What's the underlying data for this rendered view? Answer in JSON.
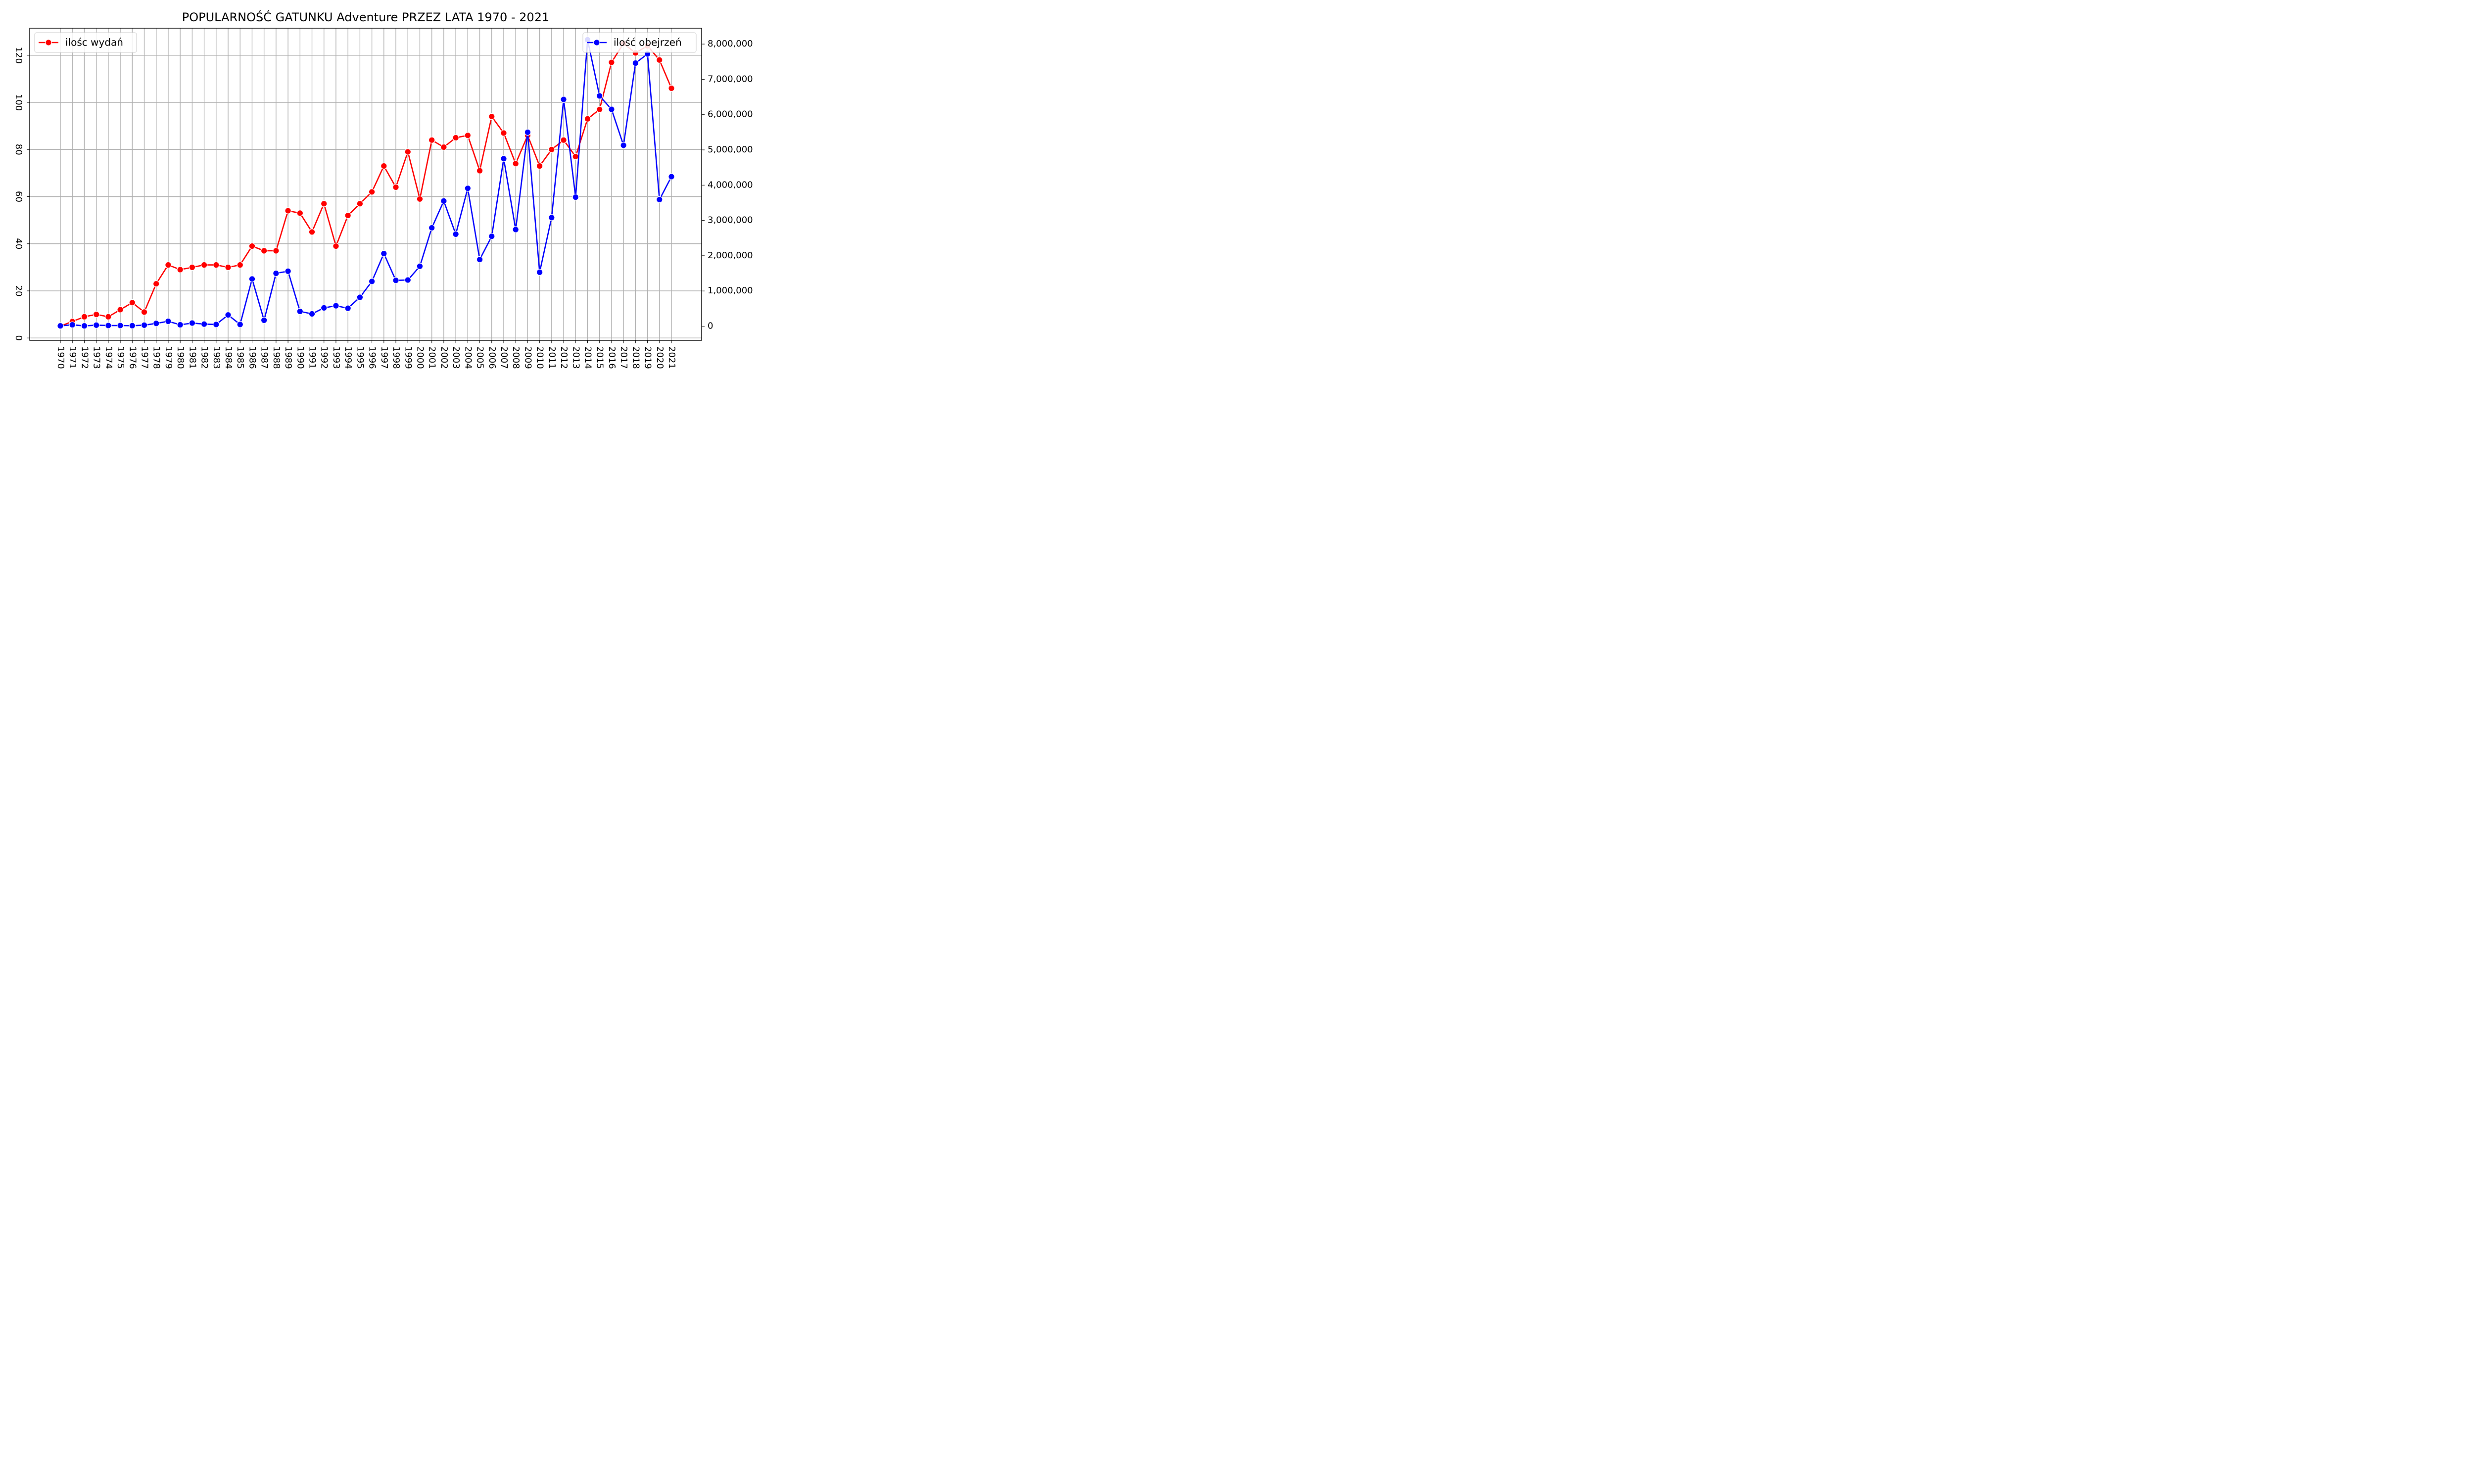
{
  "chart_data": {
    "type": "line",
    "title": "POPULARNOŚĆ GATUNKU Adventure PRZEZ LATA 1970 - 2021",
    "xlabel": "",
    "ylabel": "",
    "grid": true,
    "x": [
      1970,
      1971,
      1972,
      1973,
      1974,
      1975,
      1976,
      1977,
      1978,
      1979,
      1980,
      1981,
      1982,
      1983,
      1984,
      1985,
      1986,
      1987,
      1988,
      1989,
      1990,
      1991,
      1992,
      1993,
      1994,
      1995,
      1996,
      1997,
      1998,
      1999,
      2000,
      2001,
      2002,
      2003,
      2004,
      2005,
      2006,
      2007,
      2008,
      2009,
      2010,
      2011,
      2012,
      2013,
      2014,
      2015,
      2016,
      2017,
      2018,
      2019,
      2020,
      2021
    ],
    "y_left": {
      "ylim": [
        -1,
        131.5
      ],
      "ticks": [
        0,
        20,
        40,
        60,
        80,
        100,
        120
      ],
      "tick_labels": [
        "0",
        "20",
        "40",
        "60",
        "80",
        "100",
        "120"
      ]
    },
    "y_right": {
      "ylim": [
        -400000,
        8450000
      ],
      "ticks": [
        0,
        1000000,
        2000000,
        3000000,
        4000000,
        5000000,
        6000000,
        7000000,
        8000000
      ],
      "tick_labels": [
        "0",
        "1,000,000",
        "2,000,000",
        "3,000,000",
        "4,000,000",
        "5,000,000",
        "6,000,000",
        "7,000,000",
        "8,000,000"
      ]
    },
    "series": [
      {
        "name": "ilośc wydań",
        "axis": "left",
        "color": "#ff0000",
        "legend_position": "upper left",
        "values": [
          5,
          7,
          9,
          10,
          9,
          12,
          15,
          11,
          23,
          31,
          29,
          30,
          31,
          31,
          30,
          31,
          39,
          37,
          37,
          54,
          53,
          45,
          57,
          39,
          52,
          57,
          62,
          73,
          64,
          79,
          59,
          84,
          81,
          85,
          86,
          71,
          94,
          87,
          74,
          86,
          73,
          80,
          84,
          77,
          93,
          97,
          117,
          125,
          121,
          124,
          118,
          106
        ]
      },
      {
        "name": "ilość obejrzeń",
        "axis": "right",
        "color": "#0000ff",
        "legend_position": "upper right",
        "values": [
          10000,
          40000,
          10000,
          30000,
          20000,
          20000,
          15000,
          30000,
          80000,
          140000,
          40000,
          90000,
          60000,
          50000,
          320000,
          50000,
          1340000,
          170000,
          1500000,
          1560000,
          420000,
          350000,
          520000,
          580000,
          510000,
          820000,
          1270000,
          2060000,
          1300000,
          1310000,
          1700000,
          2790000,
          3550000,
          2610000,
          3910000,
          1890000,
          2550000,
          4750000,
          2740000,
          5500000,
          1530000,
          3080000,
          6430000,
          3660000,
          8120000,
          6530000,
          6150000,
          5130000,
          7460000,
          7720000,
          3590000,
          4240000
        ]
      }
    ]
  }
}
